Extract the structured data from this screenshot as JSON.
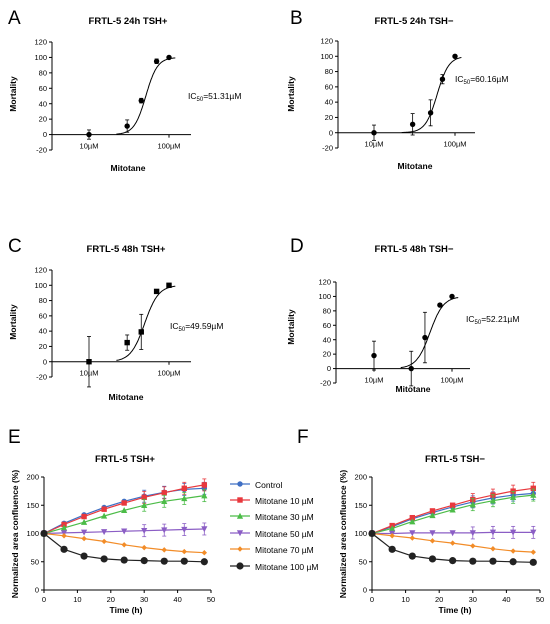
{
  "colors": {
    "control": "#3f6fc4",
    "m10": "#e8383d",
    "m30": "#4cbc48",
    "m50": "#8b5ec5",
    "m70": "#f28c28",
    "m100": "#222222"
  },
  "chart_data": [
    {
      "type": "scatter",
      "letter": "A",
      "title": "FRTL-5 24h TSH+",
      "xlabel": "Mitotane",
      "ylabel": "Mortality",
      "x_scale": "log",
      "x_ticks": [
        "10µM",
        "100µM"
      ],
      "ylim": [
        -20,
        120
      ],
      "y_ticks": [
        "-20",
        "0",
        "20",
        "40",
        "60",
        "80",
        "100",
        "120"
      ],
      "ic50_label": "IC",
      "ic50_sub": "50",
      "ic50_value": "=51.31µM",
      "ic50": 51.31,
      "hill": 6,
      "marker": "circle",
      "points": [
        {
          "x": 10,
          "y": 0,
          "err": 6
        },
        {
          "x": 30,
          "y": 11,
          "err": 8
        },
        {
          "x": 45,
          "y": 44,
          "err": 3
        },
        {
          "x": 70,
          "y": 95,
          "err": 3
        },
        {
          "x": 100,
          "y": 100,
          "err": 1
        }
      ]
    },
    {
      "type": "scatter",
      "letter": "B",
      "title": "FRTL-5 24h TSH−",
      "xlabel": "Mitotane",
      "ylabel": "Mortality",
      "x_scale": "log",
      "x_ticks": [
        "10µM",
        "100µM"
      ],
      "ylim": [
        -20,
        120
      ],
      "y_ticks": [
        "-20",
        "0",
        "20",
        "40",
        "60",
        "80",
        "100",
        "120"
      ],
      "ic50_label": "IC",
      "ic50_sub": "50",
      "ic50_value": "=60.16µM",
      "ic50": 60.16,
      "hill": 6,
      "marker": "circle",
      "points": [
        {
          "x": 10,
          "y": 0,
          "err": 10
        },
        {
          "x": 30,
          "y": 11,
          "err": 14
        },
        {
          "x": 50,
          "y": 26,
          "err": 17
        },
        {
          "x": 70,
          "y": 70,
          "err": 6
        },
        {
          "x": 100,
          "y": 100,
          "err": 1
        }
      ]
    },
    {
      "type": "scatter",
      "letter": "C",
      "title": "FRTL-5 48h TSH+",
      "xlabel": "Mitotane",
      "ylabel": "Mortality",
      "x_scale": "log",
      "x_ticks": [
        "10µM",
        "100µM"
      ],
      "ylim": [
        -20,
        120
      ],
      "y_ticks": [
        "-20",
        "0",
        "20",
        "40",
        "60",
        "80",
        "100",
        "120"
      ],
      "ic50_label": "IC",
      "ic50_sub": "50",
      "ic50_value": "=49.59µM",
      "ic50": 49.59,
      "hill": 5,
      "marker": "square",
      "points": [
        {
          "x": 10,
          "y": 0,
          "err": 33
        },
        {
          "x": 30,
          "y": 25,
          "err": 10
        },
        {
          "x": 45,
          "y": 39,
          "err": 23
        },
        {
          "x": 70,
          "y": 92,
          "err": 2
        },
        {
          "x": 100,
          "y": 100,
          "err": 2
        }
      ]
    },
    {
      "type": "scatter",
      "letter": "D",
      "title": "FRTL-5 48h TSH−",
      "xlabel": "Mitotane",
      "ylabel": "Mortality",
      "x_scale": "log",
      "x_ticks": [
        "10µM",
        "100µM"
      ],
      "ylim": [
        -20,
        120
      ],
      "y_ticks": [
        "-20",
        "0",
        "20",
        "40",
        "60",
        "80",
        "100",
        "120"
      ],
      "ic50_label": "IC",
      "ic50_sub": "50",
      "ic50_value": "=52.21µM",
      "ic50": 52.21,
      "hill": 5,
      "marker": "circle",
      "points": [
        {
          "x": 10,
          "y": 18,
          "err": 20
        },
        {
          "x": 30,
          "y": 0,
          "err": 24
        },
        {
          "x": 45,
          "y": 43,
          "err": 35
        },
        {
          "x": 70,
          "y": 88,
          "err": 2
        },
        {
          "x": 100,
          "y": 100,
          "err": 1
        }
      ]
    },
    {
      "type": "line",
      "letter": "E",
      "title": "FRTL-5 TSH+",
      "xlabel": "Time (h)",
      "ylabel": "Normalized area confluence (%)",
      "xlim": [
        0,
        50
      ],
      "x_ticks": [
        "0",
        "10",
        "20",
        "30",
        "40",
        "50"
      ],
      "ylim": [
        0,
        200
      ],
      "y_ticks": [
        "0",
        "50",
        "100",
        "150",
        "200"
      ],
      "x": [
        0,
        6,
        12,
        18,
        24,
        30,
        36,
        42,
        48
      ],
      "series": [
        {
          "name": "Control",
          "color_key": "control",
          "marker": "circle",
          "values": [
            100,
            118,
            133,
            146,
            157,
            166,
            173,
            178,
            180
          ]
        },
        {
          "name": "Mitotane 10 µM",
          "color_key": "m10",
          "marker": "square",
          "values": [
            100,
            116,
            130,
            143,
            154,
            164,
            172,
            180,
            186
          ]
        },
        {
          "name": "Mitotane 30 µM",
          "color_key": "m30",
          "marker": "triangle",
          "values": [
            100,
            110,
            120,
            131,
            141,
            150,
            157,
            162,
            167
          ]
        },
        {
          "name": "Mitotane 50 µM",
          "color_key": "m50",
          "marker": "triangle-down",
          "values": [
            100,
            101,
            102,
            103,
            104,
            105,
            106,
            107,
            108
          ]
        },
        {
          "name": "Mitotane 70 µM",
          "color_key": "m70",
          "marker": "diamond",
          "values": [
            100,
            96,
            91,
            86,
            80,
            75,
            71,
            68,
            66
          ]
        },
        {
          "name": "Mitotane 100 µM",
          "color_key": "m100",
          "marker": "circle-big",
          "values": [
            100,
            72,
            60,
            55,
            53,
            52,
            51,
            51,
            50
          ]
        }
      ]
    },
    {
      "type": "line",
      "letter": "F",
      "title": "FRTL-5 TSH−",
      "xlabel": "Time (h)",
      "ylabel": "Normalized area confluence (%)",
      "xlim": [
        0,
        50
      ],
      "x_ticks": [
        "0",
        "10",
        "20",
        "30",
        "40",
        "50"
      ],
      "ylim": [
        0,
        200
      ],
      "y_ticks": [
        "0",
        "50",
        "100",
        "150",
        "200"
      ],
      "x": [
        0,
        6,
        12,
        18,
        24,
        30,
        36,
        42,
        48
      ],
      "series": [
        {
          "name": "Control",
          "color_key": "control",
          "marker": "circle",
          "values": [
            100,
            112,
            126,
            137,
            147,
            156,
            163,
            168,
            171
          ]
        },
        {
          "name": "Mitotane 10 µM",
          "color_key": "m10",
          "marker": "square",
          "values": [
            100,
            114,
            128,
            140,
            150,
            160,
            168,
            175,
            180
          ]
        },
        {
          "name": "Mitotane 30 µM",
          "color_key": "m30",
          "marker": "triangle",
          "values": [
            100,
            109,
            121,
            132,
            142,
            151,
            158,
            164,
            168
          ]
        },
        {
          "name": "Mitotane 50 µM",
          "color_key": "m50",
          "marker": "triangle-down",
          "values": [
            100,
            100,
            101,
            101,
            101,
            101,
            102,
            102,
            102
          ]
        },
        {
          "name": "Mitotane 70 µM",
          "color_key": "m70",
          "marker": "diamond",
          "values": [
            100,
            96,
            92,
            87,
            83,
            78,
            73,
            69,
            67
          ]
        },
        {
          "name": "Mitotane 100 µM",
          "color_key": "m100",
          "marker": "circle-big",
          "values": [
            100,
            72,
            60,
            55,
            52,
            51,
            51,
            50,
            49
          ]
        }
      ]
    }
  ],
  "legend": {
    "items": [
      {
        "name": "Control",
        "color_key": "control",
        "marker": "circle"
      },
      {
        "name": "Mitotane 10 µM",
        "color_key": "m10",
        "marker": "square"
      },
      {
        "name": "Mitotane 30 µM",
        "color_key": "m30",
        "marker": "triangle"
      },
      {
        "name": "Mitotane 50 µM",
        "color_key": "m50",
        "marker": "triangle-down"
      },
      {
        "name": "Mitotane 70 µM",
        "color_key": "m70",
        "marker": "diamond"
      },
      {
        "name": "Mitotane 100 µM",
        "color_key": "m100",
        "marker": "circle-big"
      }
    ]
  }
}
